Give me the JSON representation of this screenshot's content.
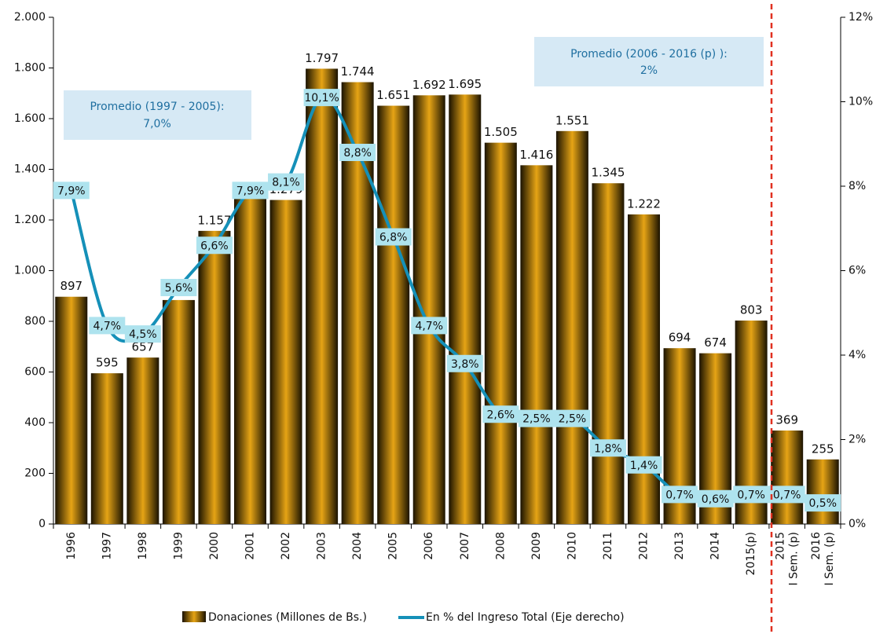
{
  "chart_data": {
    "type": "bar_line",
    "categories": [
      "1996",
      "1997",
      "1998",
      "1999",
      "2000",
      "2001",
      "2002",
      "2003",
      "2004",
      "2005",
      "2006",
      "2007",
      "2008",
      "2009",
      "2010",
      "2011",
      "2012",
      "2013",
      "2014",
      "2015(p)",
      "2015 I Sem. (p)",
      "2016 I Sem. (p)"
    ],
    "series": [
      {
        "name": "Donaciones (Millones de Bs.)",
        "color": "#c8900a",
        "type": "bar",
        "values": [
          897,
          595,
          657,
          884,
          1157,
          1288,
          1279,
          1797,
          1744,
          1651,
          1692,
          1695,
          1505,
          1416,
          1551,
          1345,
          1222,
          694,
          674,
          803,
          369,
          255
        ],
        "value_labels": [
          "897",
          "595",
          "657",
          "884",
          "1.157",
          "1.288",
          "1.279",
          "1.797",
          "1.744",
          "1.651",
          "1.692",
          "1.695",
          "1.505",
          "1.416",
          "1.551",
          "1.345",
          "1.222",
          "694",
          "674",
          "803",
          "369",
          "255"
        ]
      },
      {
        "name": "En % del Ingreso Total (Eje derecho)",
        "color": "#1590b8",
        "type": "line",
        "axis": "y2",
        "values": [
          7.9,
          4.7,
          4.5,
          5.6,
          6.6,
          7.9,
          8.1,
          10.1,
          8.8,
          6.8,
          4.7,
          3.8,
          2.6,
          2.5,
          2.5,
          1.8,
          1.4,
          0.7,
          0.6,
          0.7,
          0.7,
          0.5
        ],
        "value_labels": [
          "7,9%",
          "4,7%",
          "4,5%",
          "5,6%",
          "6,6%",
          "7,9%",
          "8,1%",
          "10,1%",
          "8,8%",
          "6,8%",
          "4,7%",
          "3,8%",
          "2,6%",
          "2,5%",
          "2,5%",
          "1,8%",
          "1,4%",
          "0,7%",
          "0,6%",
          "0,7%",
          "0,7%",
          "0,5%"
        ]
      }
    ],
    "ylim": [
      0,
      2000
    ],
    "yticks": [
      0,
      200,
      400,
      600,
      800,
      {
        "value": 1000,
        "label": "1.000"
      },
      {
        "value": 1200,
        "label": "1.200"
      },
      {
        "value": 1400,
        "label": "1.400"
      },
      {
        "value": 1600,
        "label": "1.600"
      },
      {
        "value": 1800,
        "label": "1.800"
      },
      {
        "value": 2000,
        "label": "2.000"
      }
    ],
    "y2lim": [
      0,
      12
    ],
    "y2ticks": [
      {
        "value": 0,
        "label": "0%"
      },
      {
        "value": 2,
        "label": "2%"
      },
      {
        "value": 4,
        "label": "4%"
      },
      {
        "value": 6,
        "label": "6%"
      },
      {
        "value": 8,
        "label": "8%"
      },
      {
        "value": 10,
        "label": "10%"
      },
      {
        "value": 12,
        "label": "12%"
      }
    ],
    "annotations": [
      {
        "label": "Promedio (1997 - 2005):",
        "value": "7,0%"
      },
      {
        "label": "Promedio (2006 - 2016 (p) ):",
        "value": "2%"
      }
    ],
    "legend": "bottom"
  }
}
